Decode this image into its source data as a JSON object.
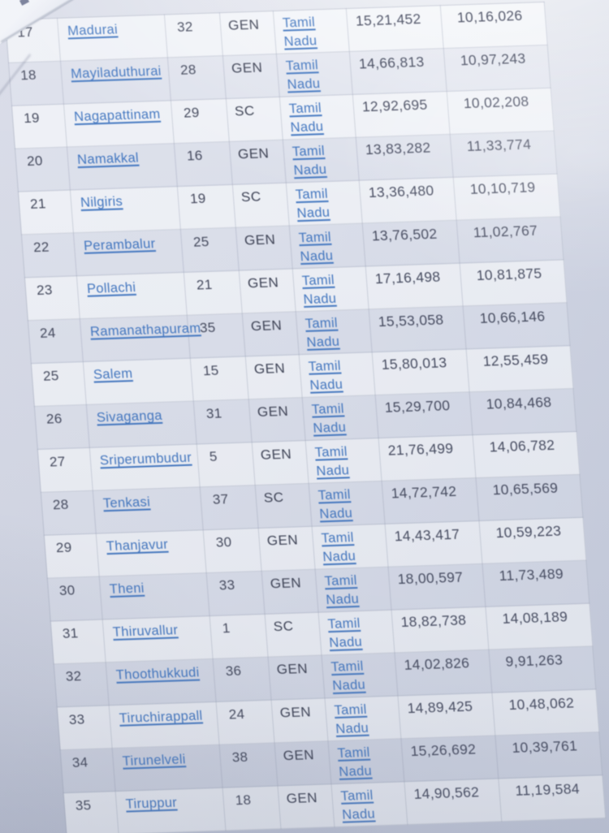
{
  "document": {
    "kind": "photographed printout of a constituency results table",
    "state_label": "Tamil Nadu"
  },
  "colors": {
    "paper": "#d2d6e3",
    "link_blue": "#4377c0",
    "text_dark": "#454a5d"
  },
  "table": {
    "rows": [
      {
        "serial": "17",
        "constituency": "Madurai",
        "number": "32",
        "category": "GEN",
        "state": "Tamil Nadu",
        "electors": "15,21,452",
        "votes": "10,16,026"
      },
      {
        "serial": "18",
        "constituency": "Mayiladuthurai",
        "number": "28",
        "category": "GEN",
        "state": "Tamil Nadu",
        "electors": "14,66,813",
        "votes": "10,97,243"
      },
      {
        "serial": "19",
        "constituency": "Nagapattinam",
        "number": "29",
        "category": "SC",
        "state": "Tamil Nadu",
        "electors": "12,92,695",
        "votes": "10,02,208"
      },
      {
        "serial": "20",
        "constituency": "Namakkal",
        "number": "16",
        "category": "GEN",
        "state": "Tamil Nadu",
        "electors": "13,83,282",
        "votes": "11,33,774"
      },
      {
        "serial": "21",
        "constituency": "Nilgiris",
        "number": "19",
        "category": "SC",
        "state": "Tamil Nadu",
        "electors": "13,36,480",
        "votes": "10,10,719"
      },
      {
        "serial": "22",
        "constituency": "Perambalur",
        "number": "25",
        "category": "GEN",
        "state": "Tamil Nadu",
        "electors": "13,76,502",
        "votes": "11,02,767"
      },
      {
        "serial": "23",
        "constituency": "Pollachi",
        "number": "21",
        "category": "GEN",
        "state": "Tamil Nadu",
        "electors": "17,16,498",
        "votes": "10,81,875"
      },
      {
        "serial": "24",
        "constituency": "Ramanathapuram",
        "number": "35",
        "category": "GEN",
        "state": "Tamil Nadu",
        "electors": "15,53,058",
        "votes": "10,66,146"
      },
      {
        "serial": "25",
        "constituency": "Salem",
        "number": "15",
        "category": "GEN",
        "state": "Tamil Nadu",
        "electors": "15,80,013",
        "votes": "12,55,459"
      },
      {
        "serial": "26",
        "constituency": "Sivaganga",
        "number": "31",
        "category": "GEN",
        "state": "Tamil Nadu",
        "electors": "15,29,700",
        "votes": "10,84,468"
      },
      {
        "serial": "27",
        "constituency": "Sriperumbudur",
        "number": "5",
        "category": "GEN",
        "state": "Tamil Nadu",
        "electors": "21,76,499",
        "votes": "14,06,782"
      },
      {
        "serial": "28",
        "constituency": "Tenkasi",
        "number": "37",
        "category": "SC",
        "state": "Tamil Nadu",
        "electors": "14,72,742",
        "votes": "10,65,569"
      },
      {
        "serial": "29",
        "constituency": "Thanjavur",
        "number": "30",
        "category": "GEN",
        "state": "Tamil Nadu",
        "electors": "14,43,417",
        "votes": "10,59,223"
      },
      {
        "serial": "30",
        "constituency": "Theni",
        "number": "33",
        "category": "GEN",
        "state": "Tamil Nadu",
        "electors": "18,00,597",
        "votes": "11,73,489"
      },
      {
        "serial": "31",
        "constituency": "Thiruvallur",
        "number": "1",
        "category": "SC",
        "state": "Tamil Nadu",
        "electors": "18,82,738",
        "votes": "14,08,189"
      },
      {
        "serial": "32",
        "constituency": "Thoothukkudi",
        "number": "36",
        "category": "GEN",
        "state": "Tamil Nadu",
        "electors": "14,02,826",
        "votes": "9,91,263"
      },
      {
        "serial": "33",
        "constituency": "Tiruchirappall",
        "number": "24",
        "category": "GEN",
        "state": "Tamil Nadu",
        "electors": "14,89,425",
        "votes": "10,48,062"
      },
      {
        "serial": "34",
        "constituency": "Tirunelveli",
        "number": "38",
        "category": "GEN",
        "state": "Tamil Nadu",
        "electors": "15,26,692",
        "votes": "10,39,761"
      },
      {
        "serial": "35",
        "constituency": "Tiruppur",
        "number": "18",
        "category": "GEN",
        "state": "Tamil Nadu",
        "electors": "14,90,562",
        "votes": "11,19,584"
      }
    ]
  }
}
